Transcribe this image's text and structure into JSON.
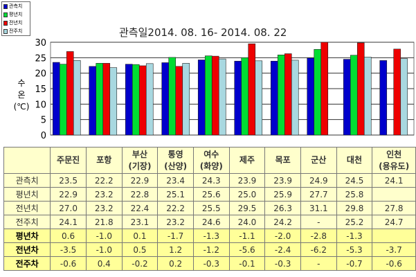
{
  "chart_data": {
    "type": "bar",
    "title": "관측일2014. 08. 16-  2014. 08. 22",
    "ylabel": "수온 (℃)",
    "ylim": [
      0,
      30
    ],
    "yticks": [
      "0",
      "5",
      "10",
      "15",
      "20",
      "25",
      "30"
    ],
    "grid": true,
    "legend_position": "top-left",
    "categories": [
      "주문진",
      "포항",
      "부산 (기장)",
      "통영 (산양)",
      "여수 (화양)",
      "제주",
      "목포",
      "군산",
      "대천",
      "인천 (용유도)"
    ],
    "series": [
      {
        "name": "관측치",
        "color": "#0000CC",
        "values": [
          23.5,
          22.2,
          22.9,
          23.4,
          24.3,
          23.9,
          23.9,
          24.9,
          24.5,
          24.1
        ]
      },
      {
        "name": "평년치",
        "color": "#00DD33",
        "values": [
          22.9,
          23.2,
          22.8,
          25.1,
          25.6,
          25.0,
          25.9,
          27.7,
          25.8,
          null
        ]
      },
      {
        "name": "전년치",
        "color": "#EE0000",
        "values": [
          27.0,
          23.2,
          22.4,
          22.2,
          25.5,
          29.5,
          26.3,
          31.1,
          29.8,
          27.8
        ]
      },
      {
        "name": "전주치",
        "color": "#A8D8E0",
        "values": [
          24.1,
          21.8,
          23.1,
          23.2,
          24.6,
          24.0,
          24.2,
          null,
          25.2,
          24.7
        ]
      }
    ]
  },
  "table": {
    "headers": [
      [
        "주문진"
      ],
      [
        "포항"
      ],
      [
        "부산",
        "(기장)"
      ],
      [
        "통영",
        "(산양)"
      ],
      [
        "여수",
        "(화양)"
      ],
      [
        "제주"
      ],
      [
        "목포"
      ],
      [
        "군산"
      ],
      [
        "대천"
      ],
      [
        "인천",
        "(용유도)"
      ]
    ],
    "rows": [
      {
        "label": "관측치",
        "diff": false,
        "cells": [
          "23.5",
          "22.2",
          "22.9",
          "23.4",
          "24.3",
          "23.9",
          "23.9",
          "24.9",
          "24.5",
          "24.1"
        ]
      },
      {
        "label": "평년치",
        "diff": false,
        "cells": [
          "22.9",
          "23.2",
          "22.8",
          "25.1",
          "25.6",
          "25.0",
          "25.9",
          "27.7",
          "25.8",
          ""
        ]
      },
      {
        "label": "전년치",
        "diff": false,
        "cells": [
          "27.0",
          "23.2",
          "22.4",
          "22.2",
          "25.5",
          "29.5",
          "26.3",
          "31.1",
          "29.8",
          "27.8"
        ]
      },
      {
        "label": "전주치",
        "diff": false,
        "cells": [
          "24.1",
          "21.8",
          "23.1",
          "23.2",
          "24.6",
          "24.0",
          "24.2",
          "-",
          "25.2",
          "24.7"
        ]
      },
      {
        "label": "평년차",
        "diff": true,
        "cells": [
          "0.6",
          "-1.0",
          "0.1",
          "-1.7",
          "-1.3",
          "-1.1",
          "-2.0",
          "-2.8",
          "-1.3",
          ""
        ]
      },
      {
        "label": "전년차",
        "diff": true,
        "cells": [
          "-3.5",
          "-1.0",
          "0.5",
          "1.2",
          "-1.2",
          "-5.6",
          "-2.4",
          "-6.2",
          "-5.3",
          "-3.7"
        ]
      },
      {
        "label": "전주차",
        "diff": true,
        "cells": [
          "-0.6",
          "0.4",
          "-0.2",
          "0.2",
          "-0.3",
          "-0.1",
          "-0.3",
          "-",
          "-0.7",
          "-0.6"
        ]
      }
    ]
  }
}
